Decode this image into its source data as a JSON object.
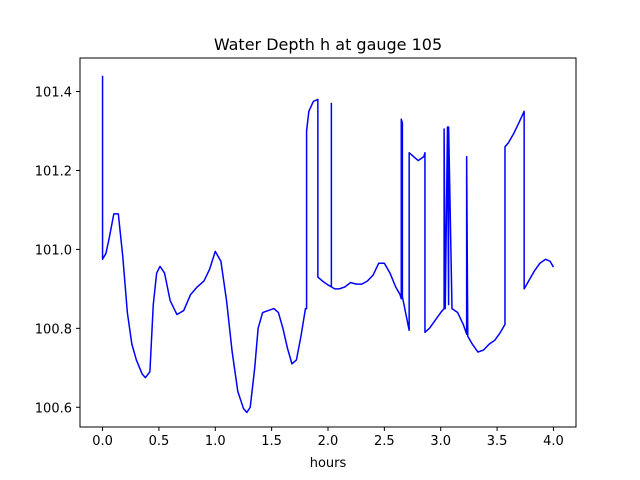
{
  "chart_data": {
    "type": "line",
    "title": "Water Depth h at gauge 105",
    "xlabel": "hours",
    "ylabel": "",
    "xlim": [
      -0.2,
      4.2
    ],
    "ylim": [
      100.55,
      101.485
    ],
    "xticks": [
      0.0,
      0.5,
      1.0,
      1.5,
      2.0,
      2.5,
      3.0,
      3.5,
      4.0
    ],
    "xtick_labels": [
      "0.0",
      "0.5",
      "1.0",
      "1.5",
      "2.0",
      "2.5",
      "3.0",
      "3.5",
      "4.0"
    ],
    "yticks": [
      100.6,
      100.8,
      101.0,
      101.2,
      101.4
    ],
    "ytick_labels": [
      "100.6",
      "100.8",
      "101.0",
      "101.2",
      "101.4"
    ],
    "grid": false,
    "series": [
      {
        "color": "#0000ff",
        "x": [
          0.0,
          0.0,
          0.0,
          0.03,
          0.06,
          0.1,
          0.14,
          0.18,
          0.22,
          0.26,
          0.3,
          0.35,
          0.38,
          0.42,
          0.45,
          0.48,
          0.51,
          0.55,
          0.6,
          0.66,
          0.72,
          0.78,
          0.84,
          0.9,
          0.95,
          1.0,
          1.05,
          1.1,
          1.15,
          1.2,
          1.25,
          1.28,
          1.31,
          1.35,
          1.38,
          1.42,
          1.47,
          1.52,
          1.56,
          1.6,
          1.64,
          1.68,
          1.72,
          1.76,
          1.8,
          1.81,
          1.81,
          1.83,
          1.87,
          1.91,
          1.91,
          1.95,
          2.0,
          2.03,
          2.03,
          2.03,
          2.06,
          2.1,
          2.15,
          2.2,
          2.25,
          2.3,
          2.35,
          2.4,
          2.45,
          2.5,
          2.55,
          2.6,
          2.64,
          2.65,
          2.65,
          2.66,
          2.66,
          2.72,
          2.72,
          2.76,
          2.8,
          2.85,
          2.86,
          2.86,
          2.9,
          2.95,
          3.0,
          3.03,
          3.03,
          3.04,
          3.06,
          3.07,
          3.07,
          3.1,
          3.15,
          3.2,
          3.23,
          3.23,
          3.24,
          3.28,
          3.33,
          3.38,
          3.43,
          3.48,
          3.53,
          3.57,
          3.57,
          3.6,
          3.65,
          3.7,
          3.74,
          3.74,
          3.78,
          3.83,
          3.88,
          3.93,
          3.97,
          4.0
        ],
        "y": [
          101.44,
          100.99,
          100.975,
          100.99,
          101.03,
          101.09,
          101.09,
          100.98,
          100.84,
          100.76,
          100.72,
          100.685,
          100.675,
          100.69,
          100.86,
          100.94,
          100.957,
          100.94,
          100.87,
          100.835,
          100.845,
          100.885,
          100.905,
          100.92,
          100.95,
          100.995,
          100.97,
          100.87,
          100.74,
          100.64,
          100.597,
          100.587,
          100.6,
          100.7,
          100.8,
          100.84,
          100.845,
          100.85,
          100.84,
          100.8,
          100.75,
          100.71,
          100.72,
          100.78,
          100.85,
          100.85,
          101.3,
          101.35,
          101.375,
          101.38,
          100.93,
          100.92,
          100.91,
          100.905,
          101.37,
          100.905,
          100.9,
          100.9,
          100.905,
          100.916,
          100.912,
          100.912,
          100.92,
          100.935,
          100.965,
          100.965,
          100.94,
          100.905,
          100.885,
          100.875,
          101.33,
          101.32,
          100.88,
          100.795,
          101.245,
          101.235,
          101.225,
          101.235,
          101.245,
          100.79,
          100.8,
          100.82,
          100.84,
          100.85,
          101.305,
          100.85,
          101.31,
          100.86,
          101.31,
          100.85,
          100.84,
          100.81,
          100.785,
          101.235,
          100.78,
          100.76,
          100.74,
          100.745,
          100.76,
          100.77,
          100.79,
          100.81,
          101.26,
          101.27,
          101.295,
          101.325,
          101.35,
          100.9,
          100.92,
          100.945,
          100.965,
          100.975,
          100.97,
          100.955
        ]
      }
    ]
  }
}
